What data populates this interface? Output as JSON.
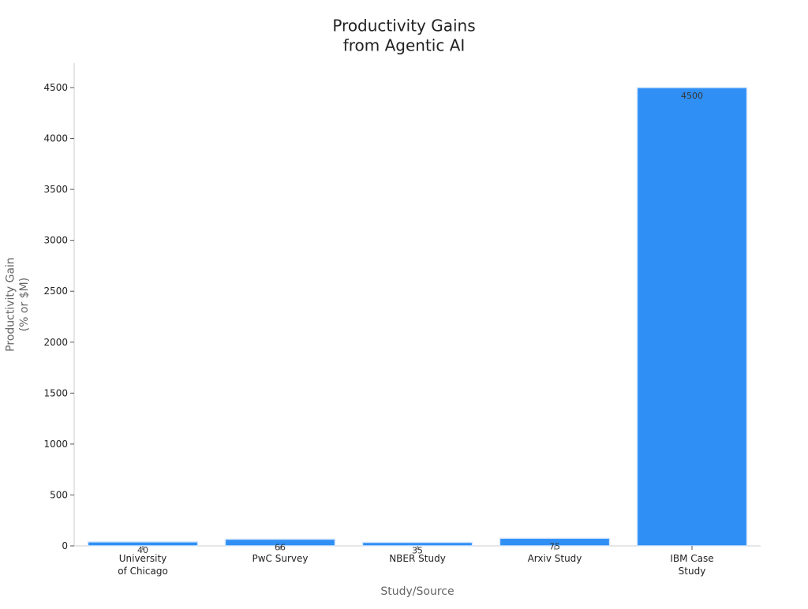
{
  "chart_data": {
    "type": "bar",
    "title": "Productivity Gains\nfrom Agentic AI",
    "x_label": "Study/Source",
    "y_label": "Productivity Gain\n(% or $M)",
    "categories": [
      "University\nof Chicago",
      "PwC Survey",
      "NBER Study",
      "Arxiv Study",
      "IBM Case\nStudy"
    ],
    "values": [
      40,
      66,
      35,
      75,
      4500
    ],
    "color": "#2f8ff5",
    "ylim": [
      0,
      4740
    ],
    "yticks": [
      0,
      500,
      1000,
      1500,
      2000,
      2500,
      3000,
      3500,
      4000,
      4500
    ],
    "grid": false
  }
}
